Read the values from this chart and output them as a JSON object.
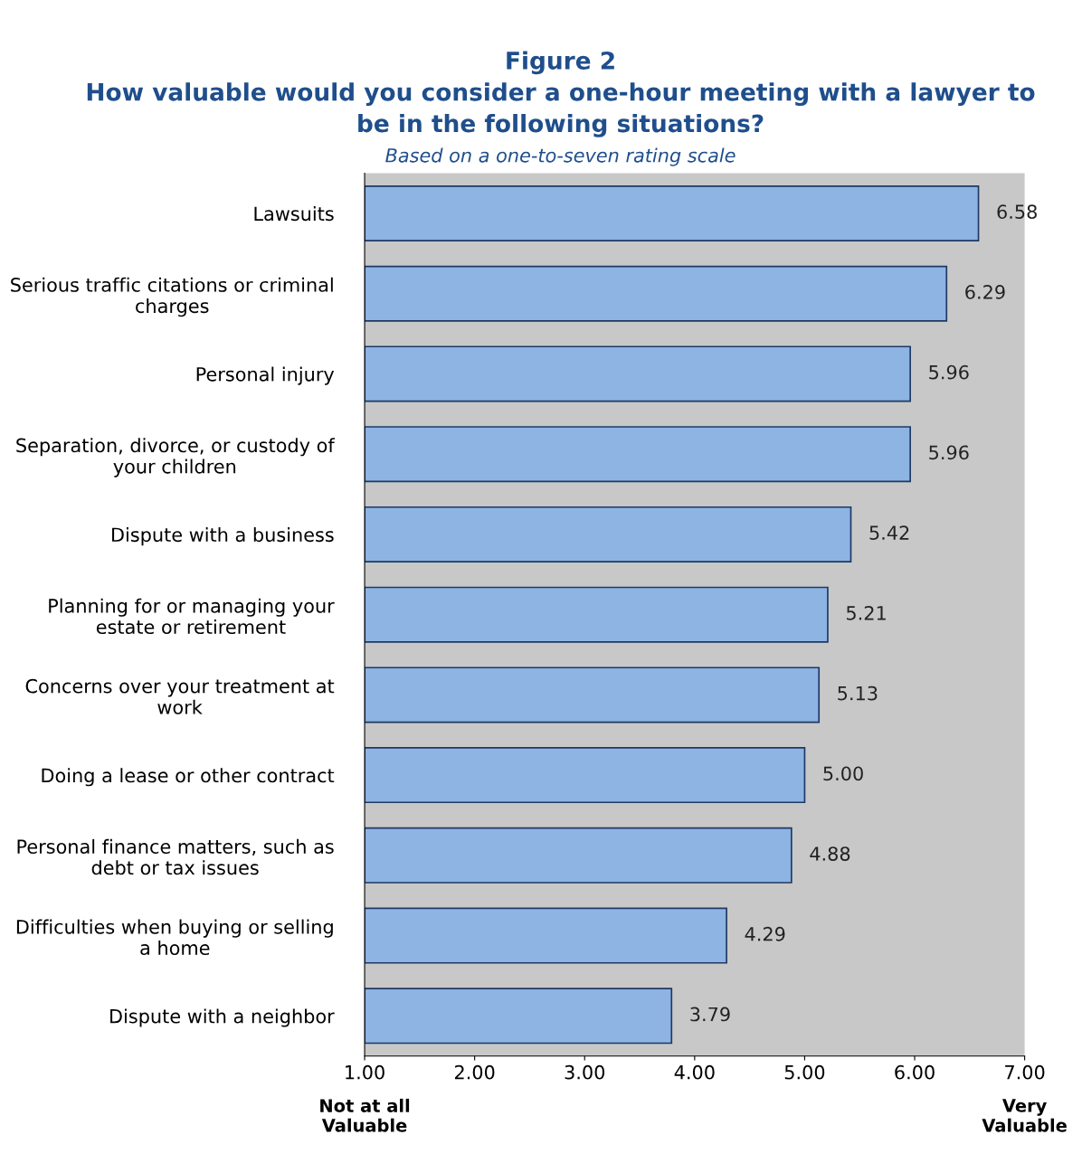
{
  "chart_data": {
    "type": "bar",
    "orientation": "horizontal",
    "title": "Figure 2\nHow valuable would you consider a one-hour meeting with a lawyer to\nbe in the following situations?",
    "subtitle": "Based on a one-to-seven rating scale",
    "categories": [
      "Lawsuits",
      "Serious traffic citations or criminal\ncharges",
      "Personal injury",
      "Separation, divorce, or custody of\nyour children",
      "Dispute with a business",
      "Planning for or managing your\nestate or retirement",
      "Concerns over your treatment at\nwork",
      "Doing a lease or other contract",
      "Personal finance matters, such as\ndebt or tax issues",
      "Difficulties when buying or selling\na home",
      "Dispute with a neighbor"
    ],
    "values": [
      6.58,
      6.29,
      5.96,
      5.96,
      5.42,
      5.21,
      5.13,
      5.0,
      4.88,
      4.29,
      3.79
    ],
    "value_labels": [
      "6.58",
      "6.29",
      "5.96",
      "5.96",
      "5.42",
      "5.21",
      "5.13",
      "5.00",
      "4.88",
      "4.29",
      "3.79"
    ],
    "color": "#8db4e2",
    "xlim": [
      1,
      7
    ],
    "xticks": [
      {
        "value": 1,
        "label": "1.00"
      },
      {
        "value": 2,
        "label": "2.00"
      },
      {
        "value": 3,
        "label": "3.00"
      },
      {
        "value": 4,
        "label": "4.00"
      },
      {
        "value": 5,
        "label": "5.00"
      },
      {
        "value": 6,
        "label": "6.00"
      },
      {
        "value": 7,
        "label": "7.00"
      }
    ],
    "annotations": [
      "Not at all\nValuable",
      "Very\nValuable"
    ],
    "grid": false,
    "legend": false
  }
}
